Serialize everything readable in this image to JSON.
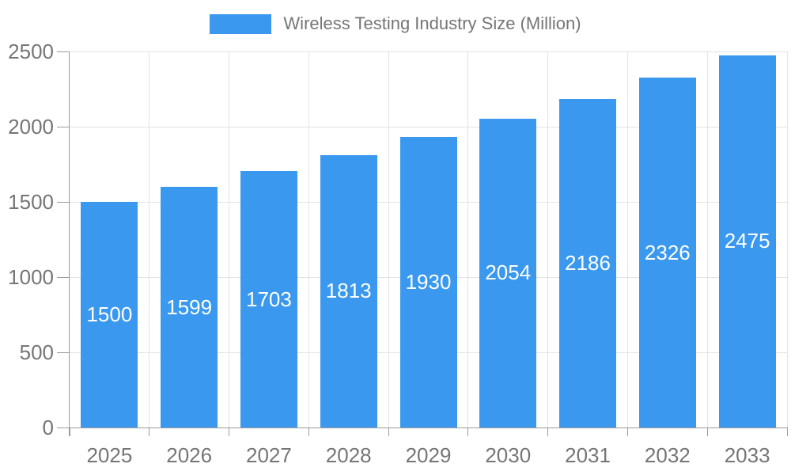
{
  "chart_data": {
    "type": "bar",
    "title": "",
    "legend": "Wireless Testing Industry Size (Million)",
    "legend_position": "top",
    "categories": [
      "2025",
      "2026",
      "2027",
      "2028",
      "2029",
      "2030",
      "2031",
      "2032",
      "2033"
    ],
    "values": [
      1500,
      1599,
      1703,
      1813,
      1930,
      2054,
      2186,
      2326,
      2475
    ],
    "xlabel": "",
    "ylabel": "",
    "ylim": [
      0,
      2500
    ],
    "yticks": [
      0,
      500,
      1000,
      1500,
      2000,
      2500
    ],
    "grid": true,
    "colors": {
      "bar": "#3A99EE",
      "bar_label_text": "#FFFFFF",
      "grid_line": "#E3E3E3",
      "axis_line": "#9B9B9B",
      "tick_line": "#9B9B9B",
      "axis_text": "#757575",
      "legend_text": "#757575",
      "background": "#FFFFFF"
    }
  }
}
